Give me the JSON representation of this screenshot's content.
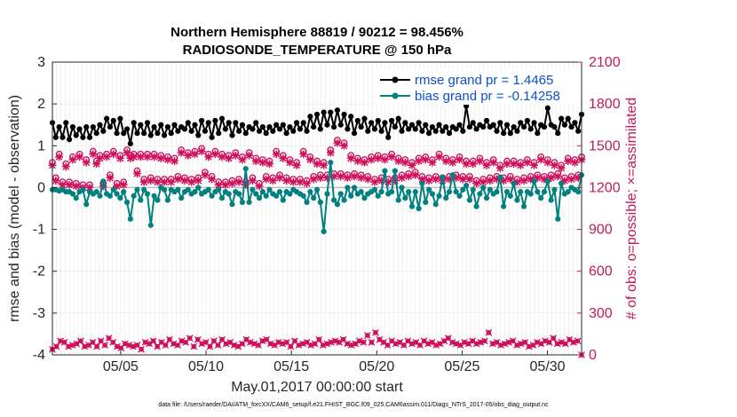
{
  "chart_data": {
    "type": "line",
    "title_line1": "Northern Hemisphere 88819 / 90212 = 98.456%",
    "title_line2": "RADIOSONDE_TEMPERATURE @ 150 hPa",
    "xlabel": "May.01,2017 00:00:00 start",
    "ylabel_left": "rmse and bias (model - observation)",
    "ylabel_right": "# of obs: o=possible; ×=assimilated",
    "footnote": "data file: /Users/raeder/DAI/ATM_forcXX/CAM6_setup/f.e21.FHIST_BGC.f09_025.CAM6assim.011/Diags_NTrS_2017-05/obs_diag_output.nc",
    "x_range": [
      1,
      32
    ],
    "x_ticks": [
      5,
      10,
      15,
      20,
      25,
      30
    ],
    "x_tick_labels": [
      "05/05",
      "05/10",
      "05/15",
      "05/20",
      "05/25",
      "05/30"
    ],
    "y_left_range": [
      -4,
      3
    ],
    "y_left_ticks": [
      "-4",
      "-3",
      "-2",
      "-1",
      "0",
      "1",
      "2",
      "3"
    ],
    "y_right_range": [
      0,
      2100
    ],
    "y_right_ticks": [
      "0",
      "300",
      "600",
      "900",
      "1200",
      "1500",
      "1800",
      "2100"
    ],
    "zero_line": 0,
    "x_grid_step_days": 0.25,
    "legend": {
      "position": "top-right",
      "rmse_label": "rmse grand pr = 1.4465",
      "bias_label": "bias grand pr = -0.14258"
    },
    "colors": {
      "rmse": "#000000",
      "bias": "#00807f",
      "obs": "#d0105c",
      "zero_line": "#bdbdbd",
      "grid": "#e6e6e6"
    },
    "series": [
      {
        "name": "rmse",
        "values": [
          1.55,
          1.2,
          1.45,
          1.2,
          1.55,
          1.15,
          1.45,
          1.25,
          1.4,
          1.2,
          1.45,
          1.2,
          1.45,
          1.3,
          1.5,
          1.35,
          1.65,
          1.45,
          1.6,
          1.3,
          1.65,
          1.3,
          1.4,
          1.05,
          1.55,
          1.3,
          1.5,
          1.3,
          1.55,
          1.25,
          1.45,
          1.3,
          1.5,
          1.25,
          1.45,
          1.3,
          1.5,
          1.35,
          1.45,
          1.4,
          1.55,
          1.35,
          1.5,
          1.25,
          1.6,
          1.35,
          1.55,
          1.2,
          1.6,
          1.3,
          1.65,
          1.4,
          1.55,
          1.25,
          1.55,
          1.35,
          1.5,
          1.3,
          1.45,
          1.4,
          1.55,
          1.35,
          1.45,
          1.3,
          1.45,
          1.35,
          1.5,
          1.4,
          1.5,
          1.3,
          1.45,
          1.35,
          1.55,
          1.4,
          1.55,
          1.35,
          1.7,
          1.45,
          1.75,
          1.4,
          1.8,
          1.5,
          1.8,
          1.45,
          1.85,
          1.5,
          1.75,
          1.4,
          1.7,
          1.3,
          1.6,
          1.45,
          1.65,
          1.35,
          1.55,
          1.4,
          1.6,
          1.35,
          1.55,
          1.2,
          1.6,
          1.45,
          1.65,
          1.35,
          1.55,
          1.4,
          1.5,
          1.4,
          1.55,
          1.35,
          1.5,
          1.3,
          1.45,
          1.35,
          1.5,
          1.35,
          1.45,
          1.3,
          1.45,
          1.4,
          1.5,
          1.35,
          1.95,
          1.45,
          1.55,
          1.4,
          1.5,
          1.45,
          1.6,
          1.45,
          1.5,
          1.35,
          1.55,
          1.3,
          1.5,
          1.3,
          1.45,
          1.35,
          1.55,
          1.45,
          1.6,
          1.4,
          1.55,
          1.3,
          1.5,
          1.45,
          1.9,
          1.5,
          1.45,
          1.3,
          1.65,
          1.5,
          1.65,
          1.45,
          1.55,
          1.35,
          1.75
        ]
      },
      {
        "name": "bias",
        "values": [
          -0.05,
          -0.05,
          -0.08,
          -0.05,
          -0.1,
          -0.1,
          -0.15,
          -0.25,
          -0.1,
          -0.05,
          -0.4,
          -0.1,
          -0.15,
          -0.1,
          -0.2,
          0.15,
          -0.15,
          -0.2,
          -0.05,
          -0.15,
          -0.25,
          -0.1,
          -0.35,
          -0.75,
          -0.2,
          -0.05,
          -0.3,
          -0.05,
          -0.15,
          -0.9,
          -0.2,
          -0.3,
          0.0,
          -0.05,
          -0.3,
          -0.05,
          -0.1,
          -0.05,
          -0.25,
          -0.1,
          -0.05,
          -0.15,
          -0.1,
          0.0,
          -0.15,
          -0.1,
          -0.05,
          -0.2,
          -0.1,
          -0.05,
          -0.25,
          -0.1,
          -0.15,
          -0.4,
          -0.1,
          -0.15,
          -0.35,
          0.45,
          -0.35,
          -0.05,
          -0.15,
          -0.25,
          -0.1,
          -0.2,
          -0.05,
          -0.15,
          -0.2,
          -0.1,
          -0.3,
          -0.1,
          -0.15,
          -0.05,
          -0.1,
          -0.15,
          -0.2,
          -0.35,
          -0.1,
          -0.25,
          -0.05,
          -0.35,
          -1.05,
          -0.15,
          0.6,
          -0.3,
          -0.4,
          -0.15,
          -0.3,
          0.0,
          -0.2,
          0.0,
          -0.15,
          -0.1,
          -0.25,
          -0.15,
          -0.1,
          -0.05,
          -0.2,
          -0.1,
          0.4,
          -0.15,
          -0.1,
          0.4,
          -0.3,
          0.0,
          -0.25,
          -0.1,
          -0.45,
          -0.1,
          -0.5,
          0.1,
          -0.35,
          -0.05,
          -0.15,
          -0.4,
          -0.2,
          0.25,
          -0.25,
          -0.1,
          0.3,
          -0.1,
          -0.2,
          -0.05,
          0.05,
          -0.3,
          -0.05,
          -0.45,
          -0.15,
          0.0,
          -0.25,
          -0.05,
          -0.15,
          -0.1,
          0.25,
          -0.45,
          -0.1,
          -0.2,
          0.1,
          -0.3,
          -0.1,
          -0.45,
          -0.1,
          -0.15,
          0.15,
          -0.1,
          -0.25,
          -0.1,
          0.15,
          -0.3,
          -0.05,
          -0.75,
          0.1,
          -0.15,
          -0.1,
          0.0,
          -0.05,
          -0.1,
          0.3
        ]
      },
      {
        "name": "obs_possible",
        "values": [
          1380,
          1270,
          1440,
          1240,
          1370,
          1240,
          1420,
          1230,
          1440,
          1220,
          1400,
          1220,
          1460,
          1390,
          1430,
          1230,
          1440,
          1290,
          1460,
          1230,
          1430,
          1240,
          1470,
          1430,
          1440,
          1320,
          1440,
          1260,
          1440,
          1270,
          1440,
          1260,
          1430,
          1260,
          1420,
          1260,
          1410,
          1280,
          1470,
          1270,
          1450,
          1260,
          1460,
          1270,
          1480,
          1310,
          1440,
          1280,
          1460,
          1240,
          1440,
          1240,
          1430,
          1250,
          1450,
          1260,
          1420,
          1240,
          1450,
          1270,
          1410,
          1230,
          1400,
          1280,
          1390,
          1270,
          1460,
          1290,
          1430,
          1270,
          1400,
          1260,
          1380,
          1260,
          1460,
          1250,
          1420,
          1280,
          1390,
          1290,
          1380,
          1290,
          1470,
          1300,
          1540,
          1300,
          1520,
          1290,
          1430,
          1300,
          1410,
          1290,
          1400,
          1280,
          1420,
          1260,
          1430,
          1270,
          1420,
          1260,
          1440,
          1270,
          1410,
          1290,
          1400,
          1300,
          1380,
          1310,
          1410,
          1280,
          1420,
          1270,
          1400,
          1280,
          1440,
          1270,
          1410,
          1280,
          1400,
          1290,
          1420,
          1280,
          1390,
          1280,
          1390,
          1250,
          1410,
          1260,
          1380,
          1270,
          1400,
          1280,
          1360,
          1270,
          1390,
          1280,
          1390,
          1260,
          1380,
          1270,
          1400,
          1280,
          1380,
          1290,
          1420,
          1280,
          1400,
          1290,
          1380,
          1300,
          1360,
          1270,
          1410,
          1280,
          1400,
          1290,
          1420
        ]
      },
      {
        "name": "obs_assimilated",
        "values": [
          1360,
          1250,
          1420,
          1220,
          1350,
          1220,
          1400,
          1210,
          1420,
          1200,
          1380,
          1200,
          1440,
          1370,
          1410,
          1210,
          1420,
          1270,
          1440,
          1210,
          1410,
          1220,
          1450,
          1410,
          1420,
          1300,
          1420,
          1240,
          1420,
          1250,
          1420,
          1240,
          1410,
          1240,
          1400,
          1240,
          1390,
          1260,
          1450,
          1250,
          1430,
          1240,
          1440,
          1250,
          1460,
          1290,
          1420,
          1260,
          1440,
          1220,
          1420,
          1220,
          1410,
          1230,
          1430,
          1240,
          1400,
          1220,
          1430,
          1250,
          1390,
          1210,
          1380,
          1260,
          1370,
          1250,
          1440,
          1270,
          1410,
          1250,
          1380,
          1240,
          1360,
          1240,
          1440,
          1230,
          1400,
          1260,
          1370,
          1270,
          1360,
          1270,
          1450,
          1280,
          1520,
          1280,
          1500,
          1270,
          1410,
          1280,
          1390,
          1270,
          1380,
          1260,
          1400,
          1240,
          1410,
          1250,
          1400,
          1240,
          1420,
          1250,
          1390,
          1270,
          1380,
          1280,
          1360,
          1290,
          1390,
          1260,
          1400,
          1250,
          1380,
          1260,
          1420,
          1250,
          1390,
          1260,
          1380,
          1270,
          1400,
          1260,
          1370,
          1260,
          1370,
          1230,
          1390,
          1240,
          1360,
          1250,
          1380,
          1260,
          1340,
          1250,
          1370,
          1260,
          1370,
          1240,
          1360,
          1250,
          1380,
          1260,
          1360,
          1270,
          1400,
          1260,
          1380,
          1270,
          1360,
          1280,
          1340,
          1250,
          1390,
          1260,
          1380,
          1270,
          1400
        ]
      },
      {
        "name": "obs_bottom",
        "values": [
          40,
          60,
          100,
          90,
          60,
          70,
          80,
          100,
          60,
          70,
          90,
          60,
          100,
          70,
          120,
          90,
          60,
          50,
          80,
          70,
          60,
          70,
          40,
          90,
          80,
          100,
          60,
          90,
          70,
          110,
          80,
          70,
          100,
          90,
          120,
          60,
          110,
          80,
          90,
          60,
          100,
          70,
          110,
          80,
          90,
          70,
          60,
          80,
          110,
          90,
          80,
          70,
          100,
          110,
          80,
          70,
          90,
          80,
          90,
          60,
          100,
          70,
          80,
          90,
          70,
          80,
          110,
          70,
          80,
          90,
          100,
          90,
          110,
          80,
          70,
          80,
          100,
          90,
          140,
          90,
          160,
          110,
          90,
          70,
          100,
          80,
          90,
          70,
          100,
          80,
          90,
          70,
          100,
          80,
          90,
          70,
          80,
          100,
          120,
          90,
          80,
          70,
          90,
          80,
          100,
          80,
          90,
          100,
          160,
          80,
          90,
          70,
          80,
          90,
          100,
          70,
          80,
          90,
          60,
          70,
          90,
          80,
          100,
          90,
          120,
          80,
          90,
          80,
          110,
          90,
          100,
          0
        ]
      }
    ]
  }
}
